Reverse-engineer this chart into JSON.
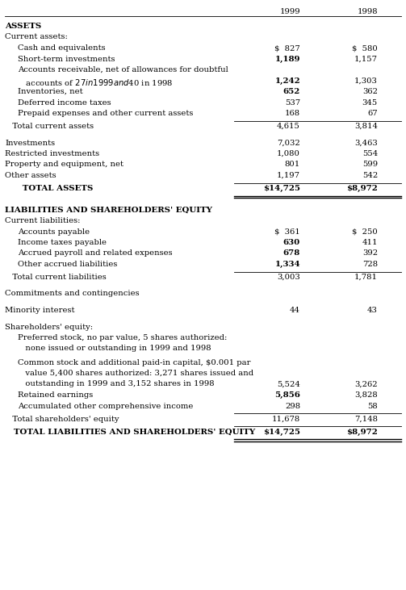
{
  "col1999": "1999",
  "col1998": "1998",
  "bg": "#ffffff",
  "font_size": 7.2,
  "font_size_bold": 7.4,
  "rows": [
    {
      "label": "ASSETS",
      "v1999": "",
      "v1998": "",
      "style": "bold_left",
      "indent": 0,
      "extra_lines": 0
    },
    {
      "label": "Current assets:",
      "v1999": "",
      "v1998": "",
      "style": "normal",
      "indent": 0,
      "extra_lines": 0
    },
    {
      "label": "Cash and equivalents",
      "v1999": "$  827",
      "v1998": "$  580",
      "style": "normal",
      "indent": 1,
      "extra_lines": 0
    },
    {
      "label": "Short-term investments",
      "v1999": "1,189",
      "v1998": "1,157",
      "style": "bold_val",
      "indent": 1,
      "extra_lines": 0
    },
    {
      "label": "Accounts receivable, net of allowances for doubtful",
      "v1999": "",
      "v1998": "",
      "style": "normal",
      "indent": 1,
      "extra_lines": 0
    },
    {
      "label": "   accounts of $27 in 1999 and $40 in 1998",
      "v1999": "1,242",
      "v1998": "1,303",
      "style": "bold_val",
      "indent": 1,
      "extra_lines": 0
    },
    {
      "label": "Inventories, net",
      "v1999": "652",
      "v1998": "362",
      "style": "bold_val",
      "indent": 1,
      "extra_lines": 0
    },
    {
      "label": "Deferred income taxes",
      "v1999": "537",
      "v1998": "345",
      "style": "normal",
      "indent": 1,
      "extra_lines": 0
    },
    {
      "label": "Prepaid expenses and other current assets",
      "v1999": "168",
      "v1998": "67",
      "style": "normal",
      "indent": 1,
      "extra_lines": 0
    },
    {
      "label": "LINE_THIN",
      "v1999": "",
      "v1998": "",
      "style": "line_thin",
      "indent": 0,
      "extra_lines": 0
    },
    {
      "label": "   Total current assets",
      "v1999": "4,615",
      "v1998": "3,814",
      "style": "normal",
      "indent": 0,
      "extra_lines": 0
    },
    {
      "label": "BLANK_HALF",
      "v1999": "",
      "v1998": "",
      "style": "blank_half",
      "indent": 0,
      "extra_lines": 0
    },
    {
      "label": "Investments",
      "v1999": "7,032",
      "v1998": "3,463",
      "style": "normal",
      "indent": 0,
      "extra_lines": 0
    },
    {
      "label": "Restricted investments",
      "v1999": "1,080",
      "v1998": "554",
      "style": "normal",
      "indent": 0,
      "extra_lines": 0
    },
    {
      "label": "Property and equipment, net",
      "v1999": "801",
      "v1998": "599",
      "style": "normal",
      "indent": 0,
      "extra_lines": 0
    },
    {
      "label": "Other assets",
      "v1999": "1,197",
      "v1998": "542",
      "style": "normal",
      "indent": 0,
      "extra_lines": 0
    },
    {
      "label": "LINE_THIN_PRE",
      "v1999": "",
      "v1998": "",
      "style": "line_thin",
      "indent": 0,
      "extra_lines": 0
    },
    {
      "label": "      TOTAL ASSETS",
      "v1999": "$14,725",
      "v1998": "$8,972",
      "style": "bold_all",
      "indent": 0,
      "extra_lines": 0
    },
    {
      "label": "LINE_THICK_DOUBLE",
      "v1999": "",
      "v1998": "",
      "style": "line_thick_double",
      "indent": 0,
      "extra_lines": 0
    },
    {
      "label": "BLANK_HALF",
      "v1999": "",
      "v1998": "",
      "style": "blank_half",
      "indent": 0,
      "extra_lines": 0
    },
    {
      "label": "LIABILITIES AND SHAREHOLDERS' EQUITY",
      "v1999": "",
      "v1998": "",
      "style": "bold_left",
      "indent": 0,
      "extra_lines": 0
    },
    {
      "label": "Current liabilities:",
      "v1999": "",
      "v1998": "",
      "style": "normal",
      "indent": 0,
      "extra_lines": 0
    },
    {
      "label": "Accounts payable",
      "v1999": "$  361",
      "v1998": "$  250",
      "style": "normal",
      "indent": 1,
      "extra_lines": 0
    },
    {
      "label": "Income taxes payable",
      "v1999": "630",
      "v1998": "411",
      "style": "bold_val",
      "indent": 1,
      "extra_lines": 0
    },
    {
      "label": "Accrued payroll and related expenses",
      "v1999": "678",
      "v1998": "392",
      "style": "bold_val",
      "indent": 1,
      "extra_lines": 0
    },
    {
      "label": "Other accrued liabilities",
      "v1999": "1,334",
      "v1998": "728",
      "style": "bold_val",
      "indent": 1,
      "extra_lines": 0
    },
    {
      "label": "LINE_THIN",
      "v1999": "",
      "v1998": "",
      "style": "line_thin",
      "indent": 0,
      "extra_lines": 0
    },
    {
      "label": "   Total current liabilities",
      "v1999": "3,003",
      "v1998": "1,781",
      "style": "normal",
      "indent": 0,
      "extra_lines": 0
    },
    {
      "label": "BLANK_HALF",
      "v1999": "",
      "v1998": "",
      "style": "blank_half",
      "indent": 0,
      "extra_lines": 0
    },
    {
      "label": "Commitments and contingencies",
      "v1999": "",
      "v1998": "",
      "style": "normal",
      "indent": 0,
      "extra_lines": 0
    },
    {
      "label": "BLANK_HALF",
      "v1999": "",
      "v1998": "",
      "style": "blank_half",
      "indent": 0,
      "extra_lines": 0
    },
    {
      "label": "Minority interest",
      "v1999": "44",
      "v1998": "43",
      "style": "normal",
      "indent": 0,
      "extra_lines": 0
    },
    {
      "label": "BLANK_HALF",
      "v1999": "",
      "v1998": "",
      "style": "blank_half",
      "indent": 0,
      "extra_lines": 0
    },
    {
      "label": "Shareholders' equity:",
      "v1999": "",
      "v1998": "",
      "style": "normal",
      "indent": 0,
      "extra_lines": 0
    },
    {
      "label": "Preferred stock, no par value, 5 shares authorized:",
      "v1999": "",
      "v1998": "",
      "style": "normal",
      "indent": 1,
      "extra_lines": 0
    },
    {
      "label": "   none issued or outstanding in 1999 and 1998",
      "v1999": "",
      "v1998": "",
      "style": "normal",
      "indent": 1,
      "extra_lines": 0
    },
    {
      "label": "BLANK_MICRO",
      "v1999": "",
      "v1998": "",
      "style": "blank_micro",
      "indent": 0,
      "extra_lines": 0
    },
    {
      "label": "Common stock and additional paid-in capital, $0.001 par",
      "v1999": "",
      "v1998": "",
      "style": "normal",
      "indent": 1,
      "extra_lines": 0
    },
    {
      "label": "   value 5,400 shares authorized: 3,271 shares issued and",
      "v1999": "",
      "v1998": "",
      "style": "normal",
      "indent": 1,
      "extra_lines": 0
    },
    {
      "label": "   outstanding in 1999 and 3,152 shares in 1998",
      "v1999": "5,524",
      "v1998": "3,262",
      "style": "normal",
      "indent": 1,
      "extra_lines": 0
    },
    {
      "label": "Retained earnings",
      "v1999": "5,856",
      "v1998": "3,828",
      "style": "bold_val",
      "indent": 1,
      "extra_lines": 0
    },
    {
      "label": "Accumulated other comprehensive income",
      "v1999": "298",
      "v1998": "58",
      "style": "normal",
      "indent": 1,
      "extra_lines": 0
    },
    {
      "label": "LINE_THIN",
      "v1999": "",
      "v1998": "",
      "style": "line_thin",
      "indent": 0,
      "extra_lines": 0
    },
    {
      "label": "   Total shareholders' equity",
      "v1999": "11,678",
      "v1998": "7,148",
      "style": "normal",
      "indent": 0,
      "extra_lines": 0
    },
    {
      "label": "LINE_THIN_PRE2",
      "v1999": "",
      "v1998": "",
      "style": "line_thin",
      "indent": 0,
      "extra_lines": 0
    },
    {
      "label": "   TOTAL LIABILITIES AND SHAREHOLDERS' EQUITY",
      "v1999": "$14,725",
      "v1998": "$8,972",
      "style": "bold_all",
      "indent": 0,
      "extra_lines": 0
    },
    {
      "label": "LINE_THICK_DOUBLE2",
      "v1999": "",
      "v1998": "",
      "style": "line_thick_double",
      "indent": 0,
      "extra_lines": 0
    }
  ]
}
